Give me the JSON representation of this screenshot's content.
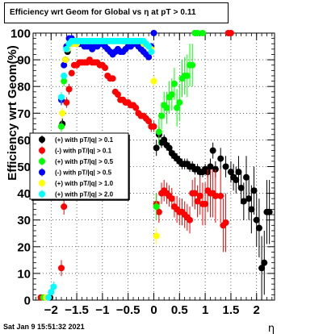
{
  "window": {
    "background": "#ffffff"
  },
  "title": "Efficiency wrt Geom for Global vs  η at pT > 0.11",
  "timestamp": "Sat Jan  9 15:51:32 2021",
  "chart_data": {
    "type": "scatter",
    "title": "Efficiency wrt Geom for Global vs  η at pT > 0.11",
    "xlabel": "η",
    "ylabel": "Efficiency wrt Geom(%)",
    "xlim": [
      -2.35,
      2.35
    ],
    "ylim": [
      0,
      100
    ],
    "grid": true,
    "x_ticks": [
      -2,
      -1.5,
      -1,
      -0.5,
      0,
      0.5,
      1,
      1.5,
      2
    ],
    "x_tick_labels": [
      "−2",
      "−1.5",
      "−1",
      "−0.5",
      "0",
      "0.5",
      "1",
      "1.5",
      "2"
    ],
    "y_ticks": [
      0,
      10,
      20,
      30,
      40,
      50,
      60,
      70,
      80,
      90,
      100
    ],
    "y_tick_labels": [
      "0",
      "10",
      "20",
      "30",
      "40",
      "50",
      "60",
      "70",
      "80",
      "90",
      "100"
    ],
    "legend_position": "left-middle",
    "series": [
      {
        "name": "(+) with pT/|q| > 0.1",
        "color": "#000000",
        "x": [
          -2.02,
          -1.78,
          -1.72,
          -1.68,
          0.05,
          0.1,
          0.15,
          0.2,
          0.25,
          0.3,
          0.35,
          0.4,
          0.45,
          0.5,
          0.55,
          0.6,
          0.65,
          0.7,
          0.75,
          0.8,
          0.85,
          0.9,
          0.95,
          1.0,
          1.05,
          1.1,
          1.15,
          1.2,
          1.3,
          1.4,
          1.5,
          1.55,
          1.6,
          1.65,
          1.7,
          1.75,
          1.8,
          1.85,
          1.9,
          1.95,
          2.0,
          2.05,
          2.1,
          2.15,
          2.2,
          2.25
        ],
        "y": [
          1,
          66,
          90,
          93,
          57,
          62,
          59,
          60,
          58,
          57,
          55,
          54,
          53,
          52,
          51,
          51,
          51,
          50,
          50,
          49,
          49,
          48,
          48,
          49,
          48,
          50,
          56,
          49,
          53,
          50,
          48,
          46,
          45,
          48,
          42,
          37,
          46,
          38,
          34,
          41,
          30,
          27,
          12,
          14,
          33,
          33
        ],
        "err": [
          1,
          2,
          1,
          1,
          3,
          3,
          2,
          2,
          2,
          2,
          2,
          2,
          2,
          2,
          2,
          2,
          2,
          2,
          2,
          2,
          2,
          2,
          2,
          2,
          2,
          3,
          3,
          3,
          4,
          4,
          4,
          5,
          5,
          6,
          6,
          7,
          8,
          8,
          9,
          9,
          10,
          11,
          12,
          12,
          12,
          12
        ]
      },
      {
        "name": "(-) with pT/|q| > 0.1",
        "color": "#ff0000",
        "x": [
          -2.2,
          -1.8,
          -1.75,
          -1.7,
          -1.65,
          -1.6,
          -1.55,
          -1.5,
          -1.45,
          -1.4,
          -1.35,
          -1.3,
          -1.25,
          -1.2,
          -1.15,
          -1.1,
          -1.05,
          -1.0,
          -0.95,
          -0.9,
          -0.85,
          -0.8,
          -0.75,
          -0.7,
          -0.65,
          -0.6,
          -0.55,
          -0.5,
          -0.45,
          -0.4,
          -0.35,
          -0.3,
          -0.25,
          -0.2,
          -0.15,
          -0.1,
          -0.05,
          0.0,
          0.05,
          0.1,
          0.15,
          0.2,
          0.25,
          0.3,
          0.35,
          0.4,
          0.45,
          0.5,
          0.55,
          0.6,
          0.65,
          0.7,
          0.75,
          0.8,
          0.85,
          0.9,
          0.95,
          1.0,
          1.05,
          1.1,
          1.15,
          1.2,
          1.3,
          1.35,
          1.4,
          1.45,
          1.5
        ],
        "y": [
          1,
          12,
          35,
          74,
          79,
          85,
          88,
          88,
          89,
          89,
          89,
          89,
          90,
          89,
          89,
          89,
          88,
          88,
          87,
          84,
          83,
          83,
          78,
          77,
          75,
          75,
          74,
          74,
          73,
          73,
          72,
          70,
          69,
          69,
          68,
          67,
          65,
          65,
          36,
          33,
          40,
          41,
          40,
          39,
          38,
          35,
          34,
          33,
          33,
          32,
          31,
          30,
          40,
          40,
          37,
          39,
          36,
          36,
          41,
          40,
          40,
          39,
          39,
          28,
          29,
          100,
          100
        ],
        "err": [
          1,
          3,
          3,
          2,
          2,
          1,
          1,
          1,
          1,
          1,
          1,
          1,
          1,
          1,
          1,
          1,
          1,
          1,
          1,
          1,
          1,
          1,
          1,
          1,
          1,
          1,
          1,
          1,
          1,
          1,
          1,
          1,
          1,
          1,
          1,
          1,
          2,
          2,
          4,
          4,
          4,
          4,
          4,
          4,
          4,
          4,
          5,
          5,
          5,
          5,
          5,
          5,
          5,
          6,
          6,
          7,
          8,
          8,
          8,
          9,
          9,
          10,
          10,
          10,
          11,
          0,
          0
        ]
      },
      {
        "name": "(+) with pT/|q| > 0.5",
        "color": "#00ff00",
        "x": [
          -2.15,
          -1.8,
          -1.75,
          0.05,
          0.1,
          0.15,
          0.2,
          0.25,
          0.3,
          0.35,
          0.4,
          0.45,
          0.5,
          0.55,
          0.6,
          0.65,
          0.7,
          0.75,
          0.8,
          0.85,
          0.95
        ],
        "y": [
          1,
          65,
          82,
          35,
          63,
          69,
          73,
          72,
          76,
          77,
          81,
          72,
          74,
          83,
          84,
          84,
          88,
          88,
          100,
          100,
          100
        ],
        "err": [
          1,
          2,
          2,
          5,
          5,
          5,
          5,
          6,
          6,
          6,
          6,
          7,
          7,
          7,
          7,
          8,
          8,
          8,
          0,
          0,
          0
        ]
      },
      {
        "name": "(-) with pT/|q| > 0.5",
        "color": "#0000ff",
        "x": [
          -2.05,
          -1.8,
          -1.75,
          -1.7,
          -1.65,
          -1.6,
          -1.55,
          -1.5,
          -1.45,
          -1.4,
          -1.35,
          -1.3,
          -1.25,
          -1.2,
          -1.15,
          -1.1,
          -1.05,
          -1.0,
          -0.95,
          -0.9,
          -0.85,
          -0.8,
          -0.75,
          -0.7,
          -0.65,
          -0.6,
          -0.55,
          -0.5,
          -0.45,
          -0.4,
          -0.35,
          -0.3,
          -0.25,
          -0.2,
          -0.15,
          -0.1,
          -0.05,
          0.0
        ],
        "y": [
          1,
          75,
          88,
          95,
          98,
          98,
          97,
          96,
          96,
          96,
          95,
          95,
          95,
          94,
          95,
          95,
          96,
          96,
          95,
          94,
          93,
          92,
          93,
          94,
          93,
          93,
          94,
          95,
          95,
          96,
          96,
          95,
          94,
          93,
          92,
          91,
          95,
          100
        ],
        "err": [
          1,
          2,
          1,
          1,
          1,
          1,
          1,
          1,
          1,
          1,
          1,
          1,
          1,
          1,
          1,
          1,
          1,
          1,
          1,
          1,
          1,
          1,
          1,
          1,
          1,
          1,
          1,
          1,
          1,
          1,
          1,
          1,
          1,
          1,
          1,
          1,
          1,
          0
        ]
      },
      {
        "name": "(+) with pT/|q| > 1.0",
        "color": "#ffff00",
        "x": [
          -2.1,
          -1.78,
          -1.72,
          -1.68,
          -1.65,
          -1.6,
          -1.55,
          -1.5,
          -1.45,
          -1.4,
          -1.35,
          -1.3,
          -1.25,
          -1.2,
          -1.15,
          -1.1,
          -1.05,
          -1.0,
          -0.95,
          -0.9,
          -0.85,
          -0.8,
          -0.75,
          -0.7,
          -0.65,
          -0.6,
          -0.55,
          -0.5,
          -0.45,
          -0.4,
          -0.35,
          -0.3,
          -0.25,
          -0.2,
          -0.15,
          -0.1,
          -0.05,
          0.0,
          0.05
        ],
        "y": [
          1,
          70,
          90,
          94,
          96,
          96,
          96,
          96,
          97,
          97,
          97,
          97,
          97,
          97,
          97,
          97,
          97,
          97,
          97,
          97,
          97,
          97,
          97,
          97,
          97,
          97,
          97,
          97,
          97,
          97,
          97,
          97,
          97,
          96,
          96,
          95,
          94,
          82,
          24
        ],
        "err": [
          1,
          2,
          1,
          1,
          1,
          1,
          1,
          1,
          1,
          1,
          1,
          1,
          1,
          1,
          1,
          1,
          1,
          1,
          1,
          1,
          1,
          1,
          1,
          1,
          1,
          1,
          1,
          1,
          1,
          1,
          1,
          1,
          1,
          1,
          1,
          1,
          1,
          2,
          3
        ]
      },
      {
        "name": "(+) with pT/|q| > 2.0",
        "color": "#00ffff",
        "x": [
          -2.05,
          -2.0,
          -1.95,
          -1.8,
          -1.75,
          -1.7,
          -1.65,
          -1.6,
          -1.55,
          -1.5,
          -1.45,
          -1.4,
          -1.35,
          -1.3,
          -1.25,
          -1.2,
          -1.15,
          -1.1,
          -1.05,
          -1.0,
          -0.95,
          -0.9,
          -0.85,
          -0.8,
          -0.75,
          -0.7,
          -0.65,
          -0.6,
          -0.55,
          -0.5,
          -0.45,
          -0.4,
          -0.35,
          -0.3,
          -0.25,
          -0.2,
          -0.15,
          -0.1,
          -0.05
        ],
        "y": [
          1,
          3,
          5,
          76,
          84,
          94,
          96,
          97,
          97,
          97,
          97,
          97,
          97,
          97,
          97,
          97,
          97,
          97,
          97,
          97,
          97,
          97,
          97,
          97,
          97,
          97,
          97,
          97,
          97,
          97,
          97,
          97,
          97,
          97,
          97,
          97,
          96,
          95,
          93
        ],
        "err": [
          1,
          1,
          2,
          2,
          1,
          1,
          1,
          1,
          1,
          1,
          1,
          1,
          1,
          1,
          1,
          1,
          1,
          1,
          1,
          1,
          1,
          1,
          1,
          1,
          1,
          1,
          1,
          1,
          1,
          1,
          1,
          1,
          1,
          1,
          1,
          1,
          1,
          1,
          1
        ]
      }
    ]
  }
}
